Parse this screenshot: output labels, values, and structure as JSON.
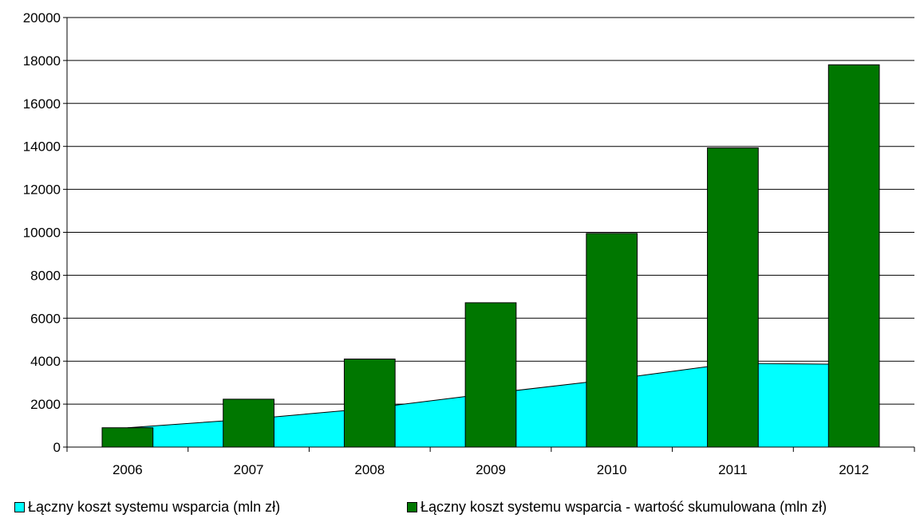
{
  "chart_data": {
    "type": "bar",
    "categories": [
      "2006",
      "2007",
      "2008",
      "2009",
      "2010",
      "2011",
      "2012"
    ],
    "series": [
      {
        "name": "Łączny koszt systemu wsparcia (mln zł)",
        "type": "area",
        "color": "#00ffff",
        "values": [
          900,
          1300,
          1800,
          2500,
          3150,
          3900,
          3850
        ]
      },
      {
        "name": "Łączny koszt systemu wsparcia - wartość skumulowana (mln zł)",
        "type": "bar",
        "color": "#007700",
        "values": [
          900,
          2230,
          4100,
          6720,
          9950,
          13930,
          17800
        ]
      }
    ],
    "ylim": [
      0,
      20000
    ],
    "yticks": [
      "0",
      "2000",
      "4000",
      "6000",
      "8000",
      "10000",
      "12000",
      "14000",
      "16000",
      "18000",
      "20000"
    ],
    "grid": true,
    "legend_position": "bottom"
  }
}
